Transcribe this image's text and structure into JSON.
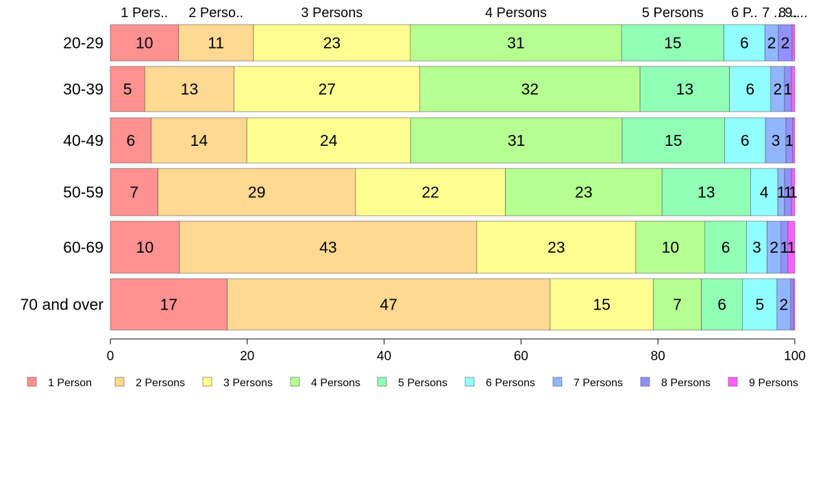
{
  "chart_data": {
    "type": "bar",
    "orientation": "horizontal",
    "stacked": true,
    "categories": [
      "20-29",
      "30-39",
      "40-49",
      "50-59",
      "60-69",
      "70 and over"
    ],
    "series": [
      {
        "name": "1 Person",
        "color": "#FF9191",
        "values": [
          10,
          5,
          6,
          7,
          10,
          17
        ]
      },
      {
        "name": "2 Persons",
        "color": "#FFD891",
        "values": [
          11,
          13,
          14,
          29,
          43,
          47
        ]
      },
      {
        "name": "3 Persons",
        "color": "#FFFF91",
        "values": [
          23,
          27,
          24,
          22,
          23,
          15
        ]
      },
      {
        "name": "4 Persons",
        "color": "#B6FF91",
        "values": [
          31,
          32,
          31,
          23,
          10,
          7
        ]
      },
      {
        "name": "5 Persons",
        "color": "#91FFB6",
        "values": [
          15,
          13,
          15,
          13,
          6,
          6
        ]
      },
      {
        "name": "6 Persons",
        "color": "#91FFFF",
        "values": [
          6,
          6,
          6,
          4,
          3,
          5
        ]
      },
      {
        "name": "7 Persons",
        "color": "#91B6FF",
        "values": [
          2,
          2,
          3,
          1,
          2,
          2
        ]
      },
      {
        "name": "8 Persons",
        "color": "#9191FF",
        "values": [
          2,
          1,
          1,
          1,
          1,
          0.4
        ]
      },
      {
        "name": "9 Persons",
        "color": "#FF60FF",
        "values": [
          0.4,
          0.5,
          0.3,
          0.5,
          1,
          0.2
        ]
      }
    ],
    "data_labels": [
      [
        "10",
        "11",
        "23",
        "31",
        "15",
        "6",
        "2",
        "2",
        ""
      ],
      [
        "5",
        "13",
        "27",
        "32",
        "13",
        "6",
        "2",
        "1",
        ""
      ],
      [
        "6",
        "14",
        "24",
        "31",
        "15",
        "6",
        "3",
        "1",
        ""
      ],
      [
        "7",
        "29",
        "22",
        "23",
        "13",
        "4",
        "1",
        "1",
        "1"
      ],
      [
        "10",
        "43",
        "23",
        "10",
        "6",
        "3",
        "2",
        "1",
        "1"
      ],
      [
        "17",
        "47",
        "15",
        "7",
        "6",
        "5",
        "2",
        "",
        ""
      ]
    ],
    "top_labels": [
      "1 Pers..",
      "2 Perso..",
      "3 Persons",
      "4 Persons",
      "5 Persons",
      "6 P..",
      "7 ..",
      "8 ..",
      "9...."
    ],
    "xlim": [
      0,
      100
    ],
    "x_ticks": [
      "0",
      "20",
      "40",
      "60",
      "80",
      "100"
    ],
    "grid": false,
    "legend_position": "bottom"
  }
}
